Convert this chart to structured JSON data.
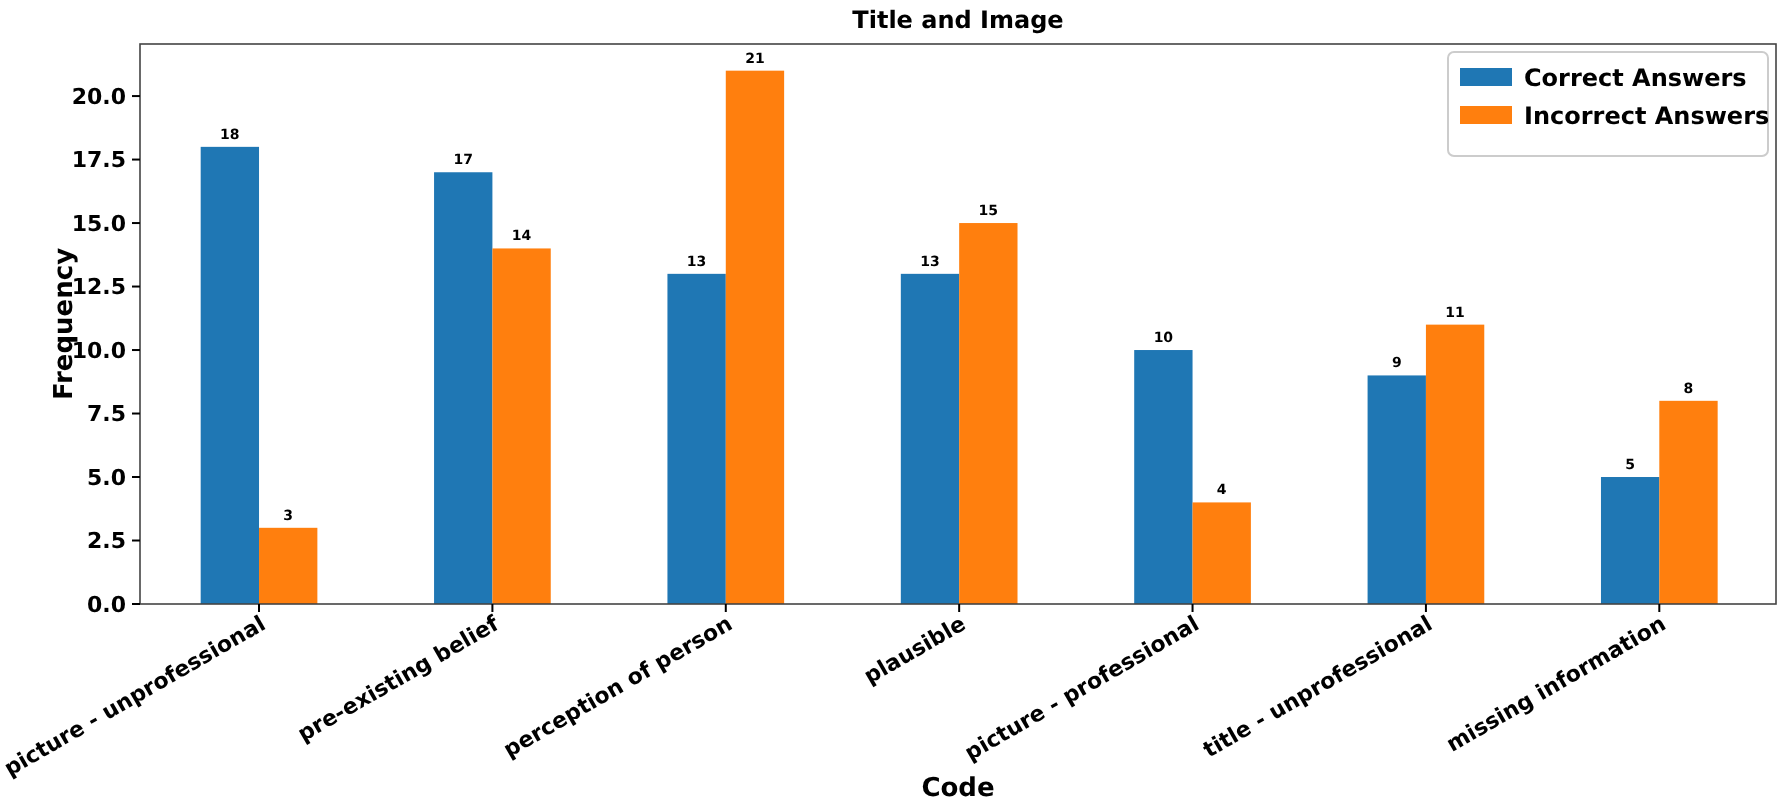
{
  "chart_data": {
    "type": "bar",
    "title": "Title and Image",
    "xlabel": "Code",
    "ylabel": "Frequency",
    "categories": [
      "picture - unprofessional",
      "pre-existing belief",
      "perception of person",
      "plausible",
      "picture - professional",
      "title - unprofessional",
      "missing information"
    ],
    "series": [
      {
        "name": "Correct Answers",
        "color": "#1f77b4",
        "values": [
          18,
          17,
          13,
          13,
          10,
          9,
          5
        ]
      },
      {
        "name": "Incorrect Answers",
        "color": "#ff7f0e",
        "values": [
          3,
          14,
          21,
          15,
          4,
          11,
          8
        ]
      }
    ],
    "ylim": [
      0,
      22.05
    ],
    "yticks": [
      {
        "value": 0,
        "label": "0.0"
      },
      {
        "value": 2.5,
        "label": "2.5"
      },
      {
        "value": 5,
        "label": "5.0"
      },
      {
        "value": 7.5,
        "label": "7.5"
      },
      {
        "value": 10,
        "label": "10.0"
      },
      {
        "value": 12.5,
        "label": "12.5"
      },
      {
        "value": 15,
        "label": "15.0"
      },
      {
        "value": 17.5,
        "label": "17.5"
      },
      {
        "value": 20,
        "label": "20.0"
      }
    ],
    "data_labels": true,
    "legend": "top right",
    "grid": false
  }
}
